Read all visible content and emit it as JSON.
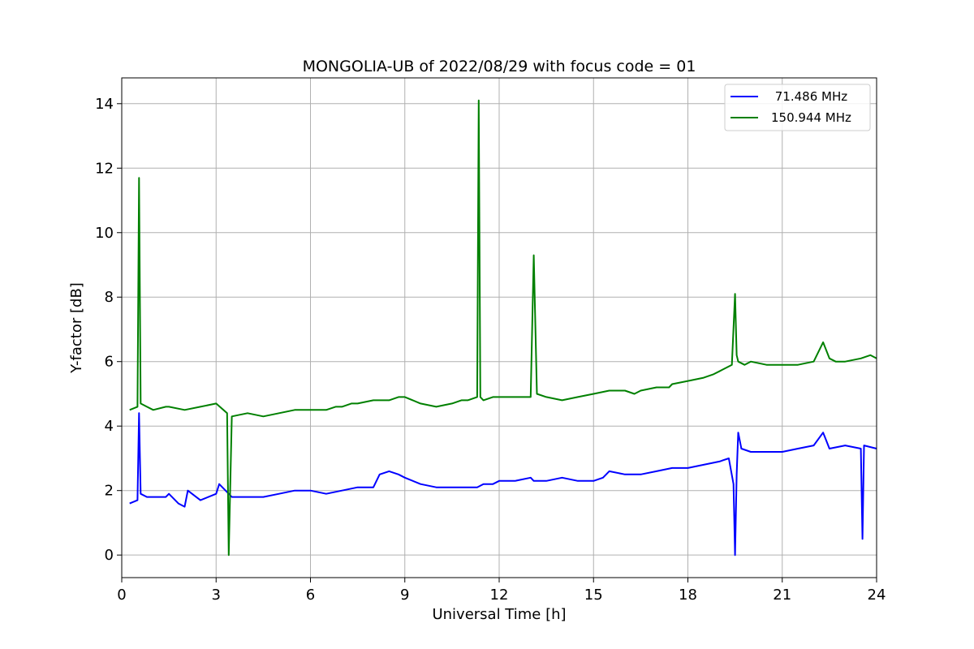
{
  "chart_data": {
    "type": "line",
    "title": "MONGOLIA-UB of 2022/08/29 with focus code = 01",
    "xlabel": "Universal Time [h]",
    "ylabel": "Y-factor [dB]",
    "xlim": [
      0,
      24
    ],
    "ylim": [
      -0.7,
      14.8
    ],
    "xticks": [
      0,
      3,
      6,
      9,
      12,
      15,
      18,
      21,
      24
    ],
    "xtick_labels": [
      "0",
      "3",
      "6",
      "9",
      "12",
      "15",
      "18",
      "21",
      "24"
    ],
    "yticks": [
      0,
      2,
      4,
      6,
      8,
      10,
      12,
      14
    ],
    "ytick_labels": [
      "0",
      "2",
      "4",
      "6",
      "8",
      "10",
      "12",
      "14"
    ],
    "grid": true,
    "legend_position": "top-right",
    "series": [
      {
        "name": "71.486 MHz",
        "legend_label": " 71.486 MHz",
        "color": "#0000ff",
        "x": [
          0.25,
          0.5,
          0.55,
          0.6,
          0.8,
          1.0,
          1.4,
          1.5,
          1.8,
          2.0,
          2.1,
          2.5,
          3.0,
          3.1,
          3.5,
          4.0,
          4.5,
          5.0,
          5.5,
          6.0,
          6.5,
          7.0,
          7.5,
          8.0,
          8.2,
          8.5,
          8.8,
          9.0,
          9.5,
          10.0,
          10.5,
          11.0,
          11.3,
          11.5,
          11.8,
          12.0,
          12.5,
          13.0,
          13.1,
          13.5,
          14.0,
          14.5,
          15.0,
          15.3,
          15.5,
          16.0,
          16.5,
          17.0,
          17.5,
          18.0,
          18.5,
          19.0,
          19.3,
          19.45,
          19.5,
          19.55,
          19.6,
          19.7,
          20.0,
          20.5,
          21.0,
          21.5,
          22.0,
          22.3,
          22.5,
          23.0,
          23.5,
          23.55,
          23.6,
          24.0
        ],
        "values": [
          1.6,
          1.7,
          4.4,
          1.9,
          1.8,
          1.8,
          1.8,
          1.9,
          1.6,
          1.5,
          2.0,
          1.7,
          1.9,
          2.2,
          1.8,
          1.8,
          1.8,
          1.9,
          2.0,
          2.0,
          1.9,
          2.0,
          2.1,
          2.1,
          2.5,
          2.6,
          2.5,
          2.4,
          2.2,
          2.1,
          2.1,
          2.1,
          2.1,
          2.2,
          2.2,
          2.3,
          2.3,
          2.4,
          2.3,
          2.3,
          2.4,
          2.3,
          2.3,
          2.4,
          2.6,
          2.5,
          2.5,
          2.6,
          2.7,
          2.7,
          2.8,
          2.9,
          3.0,
          2.2,
          0.0,
          2.5,
          3.8,
          3.3,
          3.2,
          3.2,
          3.2,
          3.3,
          3.4,
          3.8,
          3.3,
          3.4,
          3.3,
          0.5,
          3.4,
          3.3
        ]
      },
      {
        "name": "150.944 MHz",
        "legend_label": "150.944 MHz",
        "color": "#008000",
        "x": [
          0.25,
          0.5,
          0.55,
          0.6,
          0.8,
          1.0,
          1.4,
          1.5,
          2.0,
          2.5,
          3.0,
          3.35,
          3.4,
          3.5,
          4.0,
          4.5,
          5.0,
          5.5,
          6.0,
          6.5,
          6.8,
          7.0,
          7.3,
          7.5,
          8.0,
          8.2,
          8.5,
          8.8,
          9.0,
          9.5,
          10.0,
          10.5,
          10.8,
          11.0,
          11.3,
          11.35,
          11.4,
          11.5,
          11.8,
          12.0,
          12.5,
          13.0,
          13.1,
          13.2,
          13.5,
          14.0,
          14.5,
          15.0,
          15.5,
          16.0,
          16.3,
          16.5,
          17.0,
          17.4,
          17.5,
          18.0,
          18.5,
          18.8,
          19.0,
          19.4,
          19.5,
          19.55,
          19.6,
          19.8,
          20.0,
          20.5,
          21.0,
          21.5,
          22.0,
          22.3,
          22.5,
          22.7,
          23.0,
          23.5,
          23.8,
          24.0
        ],
        "values": [
          4.5,
          4.6,
          11.7,
          4.7,
          4.6,
          4.5,
          4.6,
          4.6,
          4.5,
          4.6,
          4.7,
          4.4,
          0.0,
          4.3,
          4.4,
          4.3,
          4.4,
          4.5,
          4.5,
          4.5,
          4.6,
          4.6,
          4.7,
          4.7,
          4.8,
          4.8,
          4.8,
          4.9,
          4.9,
          4.7,
          4.6,
          4.7,
          4.8,
          4.8,
          4.9,
          14.1,
          4.9,
          4.8,
          4.9,
          4.9,
          4.9,
          4.9,
          9.3,
          5.0,
          4.9,
          4.8,
          4.9,
          5.0,
          5.1,
          5.1,
          5.0,
          5.1,
          5.2,
          5.2,
          5.3,
          5.4,
          5.5,
          5.6,
          5.7,
          5.9,
          8.1,
          6.2,
          6.0,
          5.9,
          6.0,
          5.9,
          5.9,
          5.9,
          6.0,
          6.6,
          6.1,
          6.0,
          6.0,
          6.1,
          6.2,
          6.1
        ]
      }
    ]
  }
}
